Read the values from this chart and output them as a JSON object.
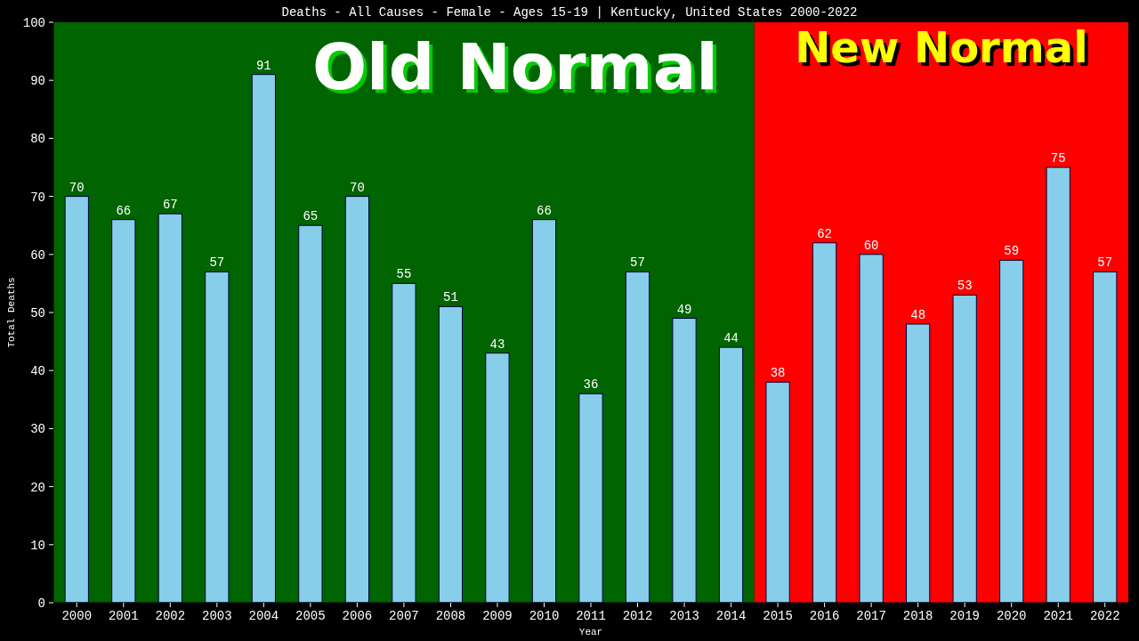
{
  "chart_data": {
    "type": "bar",
    "title": "Deaths - All Causes - Female - Ages 15-19 | Kentucky, United States 2000-2022",
    "xlabel": "Year",
    "ylabel": "Total Deaths",
    "categories": [
      "2000",
      "2001",
      "2002",
      "2003",
      "2004",
      "2005",
      "2006",
      "2007",
      "2008",
      "2009",
      "2010",
      "2011",
      "2012",
      "2013",
      "2014",
      "2015",
      "2016",
      "2017",
      "2018",
      "2019",
      "2020",
      "2021",
      "2022"
    ],
    "values": [
      70,
      66,
      67,
      57,
      91,
      65,
      70,
      55,
      51,
      43,
      66,
      36,
      57,
      49,
      44,
      38,
      62,
      60,
      48,
      53,
      59,
      75,
      57
    ],
    "color": "#87ceeb",
    "ylim": [
      0,
      100
    ],
    "yticks": [
      0,
      10,
      20,
      30,
      40,
      50,
      60,
      70,
      80,
      90,
      100
    ],
    "data_labels": true,
    "grid": false,
    "bands": [
      {
        "axis": "x",
        "from": "2000",
        "to": "2014",
        "label": "Old Normal",
        "color": "#006400"
      },
      {
        "axis": "x",
        "from": "2015",
        "to": "2022",
        "label": "New Normal",
        "color": "#ff0000"
      }
    ]
  }
}
